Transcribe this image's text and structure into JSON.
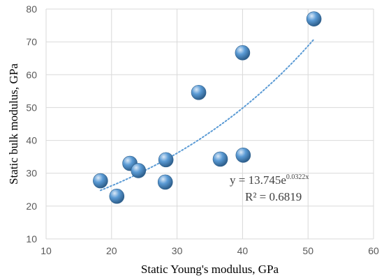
{
  "chart_data": {
    "type": "scatter",
    "xlabel": "Static Young's modulus, GPa",
    "ylabel": "Static bulk modulus, GPa",
    "xlim": [
      10,
      60
    ],
    "ylim": [
      10,
      80
    ],
    "x_ticks": [
      10,
      20,
      30,
      40,
      50,
      60
    ],
    "y_ticks": [
      10,
      20,
      30,
      40,
      50,
      60,
      70,
      80
    ],
    "grid": "horizontal and vertical major gridlines",
    "points": [
      {
        "x": 18.3,
        "y": 27.7
      },
      {
        "x": 20.8,
        "y": 23.0
      },
      {
        "x": 22.8,
        "y": 33.0
      },
      {
        "x": 24.1,
        "y": 30.8
      },
      {
        "x": 28.2,
        "y": 27.3
      },
      {
        "x": 28.3,
        "y": 34.1
      },
      {
        "x": 33.3,
        "y": 54.6
      },
      {
        "x": 36.6,
        "y": 34.3
      },
      {
        "x": 40.0,
        "y": 66.7
      },
      {
        "x": 40.1,
        "y": 35.5
      },
      {
        "x": 50.9,
        "y": 77.0
      }
    ],
    "trendline": {
      "type": "exponential",
      "a": 13.745,
      "b": 0.0322,
      "x_range": [
        18.3,
        50.9
      ],
      "style": "dotted"
    },
    "annotations": {
      "equation_base": "y = 13.745e",
      "equation_exponent": "0.0322x",
      "r_squared": "R² = 0.6819"
    },
    "colors": {
      "marker": "#5b9bd5",
      "marker_highlight": "#dbe9f7",
      "marker_shadow": "#2e5f8c",
      "trendline": "#5b9bd5",
      "grid": "#d9d9d9",
      "tick_label": "#595959"
    }
  }
}
